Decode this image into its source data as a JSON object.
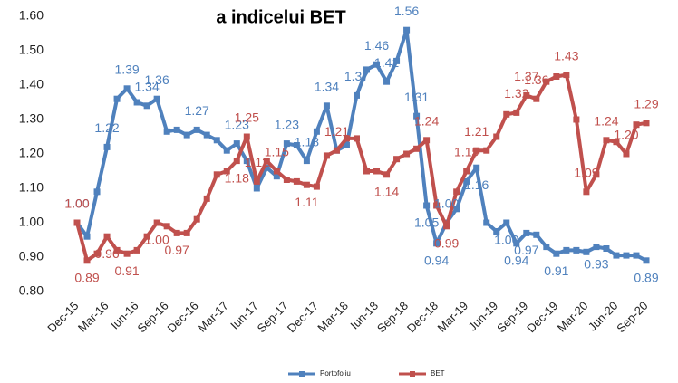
{
  "chart_data": {
    "type": "line",
    "title": "a indicelui BET",
    "categories": [
      "Dec-15",
      null,
      null,
      "Mar-16",
      null,
      null,
      "Iun-16",
      null,
      null,
      "Sep-16",
      null,
      null,
      "Dec-16",
      null,
      null,
      "Mar-17",
      null,
      null,
      "Iun-17",
      null,
      null,
      "Sep-17",
      null,
      null,
      "Dec-17",
      null,
      null,
      "Mar-18",
      null,
      null,
      "Iun-18",
      null,
      null,
      "Sep-18",
      null,
      null,
      "Dec-18",
      null,
      null,
      "Mar-19",
      null,
      null,
      "Jun-19",
      null,
      null,
      "Sep-19",
      null,
      null,
      "Dec-19",
      null,
      null,
      "Mar-20",
      null,
      null,
      "Jun-20",
      null,
      null,
      "Sep-20"
    ],
    "series": [
      {
        "name": "Portofoliu",
        "color": "#4f81bd",
        "values": [
          1.0,
          0.96,
          1.09,
          1.22,
          1.36,
          1.39,
          1.35,
          1.34,
          1.36,
          1.265,
          1.27,
          1.255,
          1.27,
          1.255,
          1.24,
          1.21,
          1.23,
          1.18,
          1.1,
          1.16,
          1.135,
          1.23,
          1.225,
          1.18,
          1.265,
          1.34,
          1.21,
          1.225,
          1.37,
          1.445,
          1.46,
          1.41,
          1.47,
          1.56,
          1.31,
          1.05,
          0.94,
          1.0,
          1.04,
          1.12,
          1.16,
          1.0,
          0.975,
          1.0,
          0.94,
          0.97,
          0.965,
          0.93,
          0.91,
          0.92,
          0.92,
          0.915,
          0.93,
          0.925,
          0.905,
          0.905,
          0.905,
          0.89
        ],
        "value_labels": [
          "1.00",
          null,
          null,
          "1.22",
          null,
          "1.39",
          null,
          "1.34",
          "1.36",
          null,
          null,
          null,
          "1.27",
          null,
          null,
          null,
          "1.23",
          null,
          null,
          null,
          null,
          "1.23",
          null,
          "1.18",
          null,
          "1.34",
          null,
          null,
          "1.37",
          null,
          "1.46",
          "1.41",
          null,
          "1.56",
          "1.31",
          "1.05",
          "0.94",
          "1.00",
          null,
          null,
          "1.16",
          null,
          null,
          "1.00",
          "0.94",
          "0.97",
          null,
          null,
          "0.91",
          null,
          null,
          null,
          "0.93",
          null,
          null,
          null,
          null,
          "0.89"
        ]
      },
      {
        "name": "BET",
        "color": "#c0504d",
        "values": [
          1.0,
          0.89,
          0.91,
          0.96,
          0.92,
          0.91,
          0.92,
          0.96,
          1.0,
          0.99,
          0.97,
          0.97,
          1.01,
          1.07,
          1.14,
          1.15,
          1.18,
          1.25,
          1.12,
          1.18,
          1.15,
          1.125,
          1.12,
          1.11,
          1.105,
          1.195,
          1.21,
          1.245,
          1.245,
          1.15,
          1.15,
          1.14,
          1.185,
          1.2,
          1.215,
          1.24,
          1.05,
          0.99,
          1.09,
          1.15,
          1.21,
          1.21,
          1.25,
          1.315,
          1.32,
          1.37,
          1.36,
          1.41,
          1.425,
          1.43,
          1.3,
          1.09,
          1.14,
          1.24,
          1.235,
          1.2,
          1.285,
          1.29
        ],
        "value_labels": [
          "1.00",
          "0.89",
          null,
          "0.96",
          null,
          "0.91",
          null,
          null,
          "1.00",
          null,
          "0.97",
          null,
          null,
          null,
          null,
          null,
          "1.18",
          "1.25",
          "1.12",
          null,
          "1.15",
          null,
          null,
          "1.11",
          null,
          null,
          "1.21",
          null,
          null,
          null,
          null,
          "1.14",
          null,
          null,
          null,
          "1.24",
          null,
          "0.99",
          null,
          "1.15",
          "1.21",
          null,
          null,
          null,
          "1.32",
          "1.37",
          "1.36",
          null,
          null,
          "1.43",
          null,
          "1.09",
          null,
          "1.24",
          null,
          "1.20",
          null,
          "1.29"
        ]
      }
    ],
    "ylim": [
      0.8,
      1.6
    ],
    "yticks": [
      {
        "value": 0.8,
        "label": "0.80"
      },
      {
        "value": 0.9,
        "label": "0.90"
      },
      {
        "value": 1.0,
        "label": "1.00"
      },
      {
        "value": 1.1,
        "label": "1.10"
      },
      {
        "value": 1.2,
        "label": "1.20"
      },
      {
        "value": 1.3,
        "label": "1.30"
      },
      {
        "value": 1.4,
        "label": "1.40"
      },
      {
        "value": 1.5,
        "label": "1.50"
      },
      {
        "value": 1.6,
        "label": "1.60"
      }
    ],
    "grid": false
  }
}
